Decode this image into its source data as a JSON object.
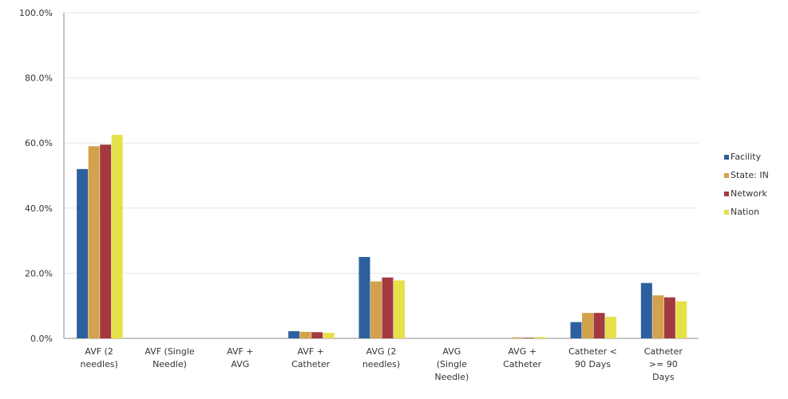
{
  "chart_data": {
    "type": "bar",
    "categories": [
      "AVF (2 needles)",
      "AVF (Single Needle)",
      "AVF + AVG",
      "AVF + Catheter",
      "AVG (2 needles)",
      "AVG (Single Needle)",
      "AVG + Catheter",
      "Catheter < 90 Days",
      "Catheter >= 90 Days"
    ],
    "category_lines": [
      [
        "AVF (2",
        "needles)"
      ],
      [
        "AVF (Single",
        "Needle)"
      ],
      [
        "AVF +",
        "AVG"
      ],
      [
        "AVF +",
        "Catheter"
      ],
      [
        "AVG (2",
        "needles)"
      ],
      [
        "AVG",
        "(Single",
        "Needle)"
      ],
      [
        "AVG +",
        "Catheter"
      ],
      [
        "Catheter <",
        "90 Days"
      ],
      [
        "Catheter",
        ">= 90",
        "Days"
      ]
    ],
    "series": [
      {
        "name": "Facility",
        "color": "#2e5f9e",
        "values": [
          52.0,
          0,
          0,
          2.2,
          25.0,
          0,
          0,
          5.0,
          17.0
        ]
      },
      {
        "name": "State: IN",
        "color": "#d4a24c",
        "values": [
          59.0,
          0,
          0,
          2.0,
          17.5,
          0,
          0.3,
          7.8,
          13.2
        ]
      },
      {
        "name": "Network",
        "color": "#a33a3f",
        "values": [
          59.5,
          0,
          0,
          1.9,
          18.7,
          0,
          0.2,
          7.8,
          12.6
        ]
      },
      {
        "name": "Nation",
        "color": "#e6e04a",
        "values": [
          62.5,
          0,
          0,
          1.7,
          17.8,
          0,
          0.4,
          6.6,
          11.4
        ]
      }
    ],
    "y_ticks": [
      "0.0%",
      "20.0%",
      "40.0%",
      "60.0%",
      "80.0%",
      "100.0%"
    ],
    "y_tick_values": [
      0,
      20,
      40,
      60,
      80,
      100
    ],
    "ylim": [
      0,
      100
    ],
    "grid": true,
    "legend_position": "right",
    "title": "",
    "xlabel": "",
    "ylabel": ""
  }
}
